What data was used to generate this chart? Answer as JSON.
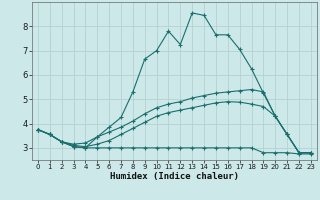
{
  "xlabel": "Humidex (Indice chaleur)",
  "bg_color": "#cce8e8",
  "line_color": "#1a6e6e",
  "grid_color": "#b0cccc",
  "x_values": [
    0,
    1,
    2,
    3,
    4,
    5,
    6,
    7,
    8,
    9,
    10,
    11,
    12,
    13,
    14,
    15,
    16,
    17,
    18,
    19,
    20,
    21,
    22,
    23
  ],
  "line1": [
    3.75,
    3.55,
    3.25,
    3.05,
    3.0,
    3.45,
    3.85,
    4.25,
    5.3,
    6.65,
    7.0,
    7.8,
    7.25,
    8.55,
    8.45,
    7.65,
    7.65,
    7.05,
    6.25,
    5.25,
    4.3,
    3.55,
    2.8,
    2.8
  ],
  "line2": [
    3.75,
    3.55,
    3.25,
    3.05,
    3.0,
    3.0,
    3.0,
    3.0,
    3.0,
    3.0,
    3.0,
    3.0,
    3.0,
    3.0,
    3.0,
    3.0,
    3.0,
    3.0,
    3.0,
    2.8,
    2.8,
    2.8,
    2.75,
    2.75
  ],
  "line3": [
    3.75,
    3.55,
    3.25,
    3.15,
    3.2,
    3.45,
    3.65,
    3.85,
    4.1,
    4.4,
    4.65,
    4.8,
    4.9,
    5.05,
    5.15,
    5.25,
    5.3,
    5.35,
    5.4,
    5.3,
    4.3,
    3.55,
    2.8,
    2.8
  ],
  "line4": [
    3.75,
    3.55,
    3.25,
    3.1,
    3.05,
    3.15,
    3.3,
    3.55,
    3.8,
    4.05,
    4.3,
    4.45,
    4.55,
    4.65,
    4.75,
    4.85,
    4.9,
    4.88,
    4.8,
    4.7,
    4.3,
    3.55,
    2.8,
    2.8
  ],
  "xlim": [
    -0.5,
    23.5
  ],
  "ylim": [
    2.5,
    9.0
  ],
  "yticks": [
    3,
    4,
    5,
    6,
    7,
    8
  ],
  "xticks": [
    0,
    1,
    2,
    3,
    4,
    5,
    6,
    7,
    8,
    9,
    10,
    11,
    12,
    13,
    14,
    15,
    16,
    17,
    18,
    19,
    20,
    21,
    22,
    23
  ]
}
